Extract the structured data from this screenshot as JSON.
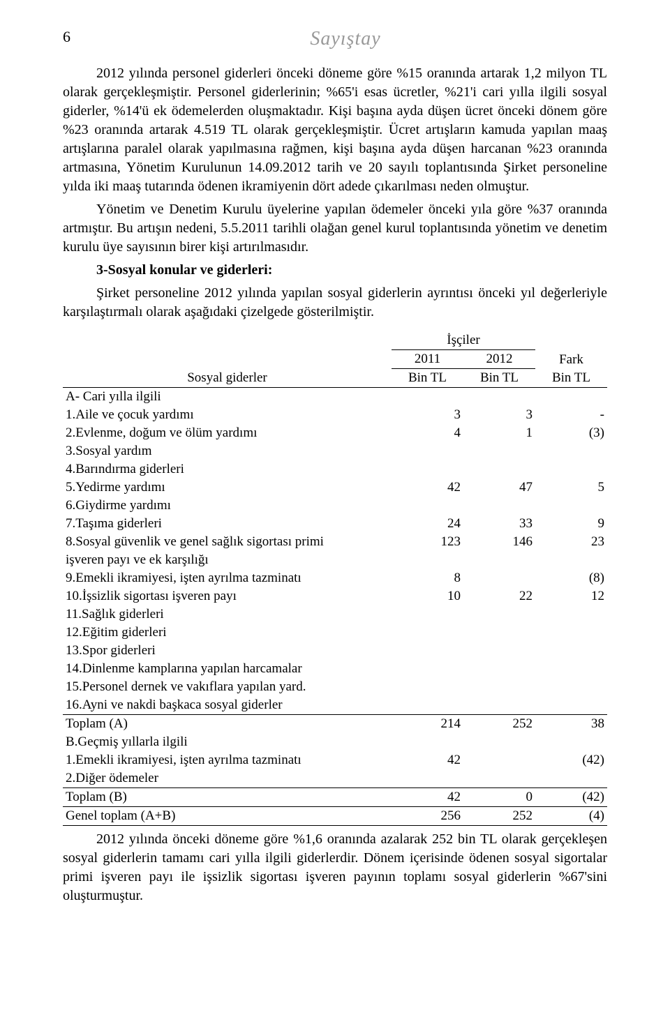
{
  "header": {
    "page_number": "6",
    "brand": "Sayıştay"
  },
  "paragraphs": {
    "p1": "2012 yılında personel giderleri önceki döneme göre %15 oranında artarak 1,2 milyon TL olarak gerçekleşmiştir. Personel giderlerinin; %65'i esas ücretler, %21'i cari yılla ilgili sosyal giderler, %14'ü ek ödemelerden oluşmaktadır. Kişi başına ayda düşen ücret önceki dönem göre %23 oranında artarak 4.519 TL olarak gerçekleşmiştir. Ücret artışların kamuda yapılan maaş artışlarına paralel olarak yapılmasına rağmen, kişi başına ayda düşen harcanan %23 oranında artmasına, Yönetim Kurulunun 14.09.2012 tarih ve 20 sayılı toplantısında Şirket personeline yılda iki maaş tutarında ödenen ikramiyenin dört adede çıkarılması neden olmuştur.",
    "p2": "Yönetim ve Denetim Kurulu üyelerine yapılan ödemeler önceki yıla göre %37 oranında artmıştır. Bu artışın nedeni, 5.5.2011 tarihli olağan genel kurul toplantısında yönetim ve denetim kurulu üye sayısının birer kişi artırılmasıdır.",
    "p3_title": "3-Sosyal konular ve giderleri:",
    "p4": "Şirket personeline 2012 yılında yapılan sosyal giderlerin ayrıntısı önceki yıl değerleriyle karşılaştırmalı olarak aşağıdaki çizelgede gösterilmiştir.",
    "footer": "2012 yılında önceki döneme göre %1,6 oranında azalarak 252 bin TL olarak gerçekleşen sosyal giderlerin tamamı cari yılla ilgili giderlerdir. Dönem içerisinde ödenen sosyal sigortalar primi işveren payı ile işsizlik sigortası işveren payının toplamı sosyal giderlerin %67'sini oluşturmuştur."
  },
  "table": {
    "row_header_label": "Sosyal giderler",
    "group_header": "İşçiler",
    "col_2011": "2011",
    "col_2012": "2012",
    "col_fark": "Fark",
    "unit": "Bin TL",
    "sections": {
      "A_label": "A- Cari yılla ilgili",
      "B_label": "B.Geçmiş yıllarla ilgili"
    },
    "rowsA": [
      {
        "label": "1.Aile ve çocuk yardımı",
        "y2011": "3",
        "y2012": "3",
        "fark": "-"
      },
      {
        "label": "2.Evlenme, doğum ve ölüm yardımı",
        "y2011": "4",
        "y2012": "1",
        "fark": "(3)"
      },
      {
        "label": "3.Sosyal yardım",
        "y2011": "",
        "y2012": "",
        "fark": ""
      },
      {
        "label": "4.Barındırma giderleri",
        "y2011": "",
        "y2012": "",
        "fark": ""
      },
      {
        "label": "5.Yedirme yardımı",
        "y2011": "42",
        "y2012": "47",
        "fark": "5"
      },
      {
        "label": "6.Giydirme yardımı",
        "y2011": "",
        "y2012": "",
        "fark": ""
      },
      {
        "label": "7.Taşıma giderleri",
        "y2011": "24",
        "y2012": "33",
        "fark": "9"
      },
      {
        "label": "8.Sosyal güvenlik ve genel sağlık sigortası primi",
        "y2011": "123",
        "y2012": "146",
        "fark": "23"
      },
      {
        "label": "   işveren payı ve ek karşılığı",
        "y2011": "",
        "y2012": "",
        "fark": ""
      },
      {
        "label": "9.Emekli ikramiyesi, işten ayrılma tazminatı",
        "y2011": "8",
        "y2012": "",
        "fark": "(8)"
      },
      {
        "label": "10.İşsizlik sigortası işveren payı",
        "y2011": "10",
        "y2012": "22",
        "fark": "12"
      },
      {
        "label": "11.Sağlık giderleri",
        "y2011": "",
        "y2012": "",
        "fark": ""
      },
      {
        "label": "12.Eğitim giderleri",
        "y2011": "",
        "y2012": "",
        "fark": ""
      },
      {
        "label": "13.Spor giderleri",
        "y2011": "",
        "y2012": "",
        "fark": ""
      },
      {
        "label": "14.Dinlenme kamplarına yapılan harcamalar",
        "y2011": "",
        "y2012": "",
        "fark": ""
      },
      {
        "label": "15.Personel dernek ve vakıflara yapılan yard.",
        "y2011": "",
        "y2012": "",
        "fark": ""
      },
      {
        "label": "16.Ayni ve nakdi başkaca sosyal giderler",
        "y2011": "",
        "y2012": "",
        "fark": ""
      }
    ],
    "totalA": {
      "label": "Toplam (A)",
      "y2011": "214",
      "y2012": "252",
      "fark": "38"
    },
    "rowsB": [
      {
        "label": "1.Emekli ikramiyesi, işten ayrılma tazminatı",
        "y2011": "42",
        "y2012": "",
        "fark": "(42)"
      },
      {
        "label": "2.Diğer ödemeler",
        "y2011": "",
        "y2012": "",
        "fark": ""
      }
    ],
    "totalB": {
      "label": "Toplam (B)",
      "y2011": "42",
      "y2012": "0",
      "fark": "(42)"
    },
    "grand": {
      "label": "Genel toplam (A+B)",
      "y2011": "256",
      "y2012": "252",
      "fark": "(4)"
    }
  }
}
